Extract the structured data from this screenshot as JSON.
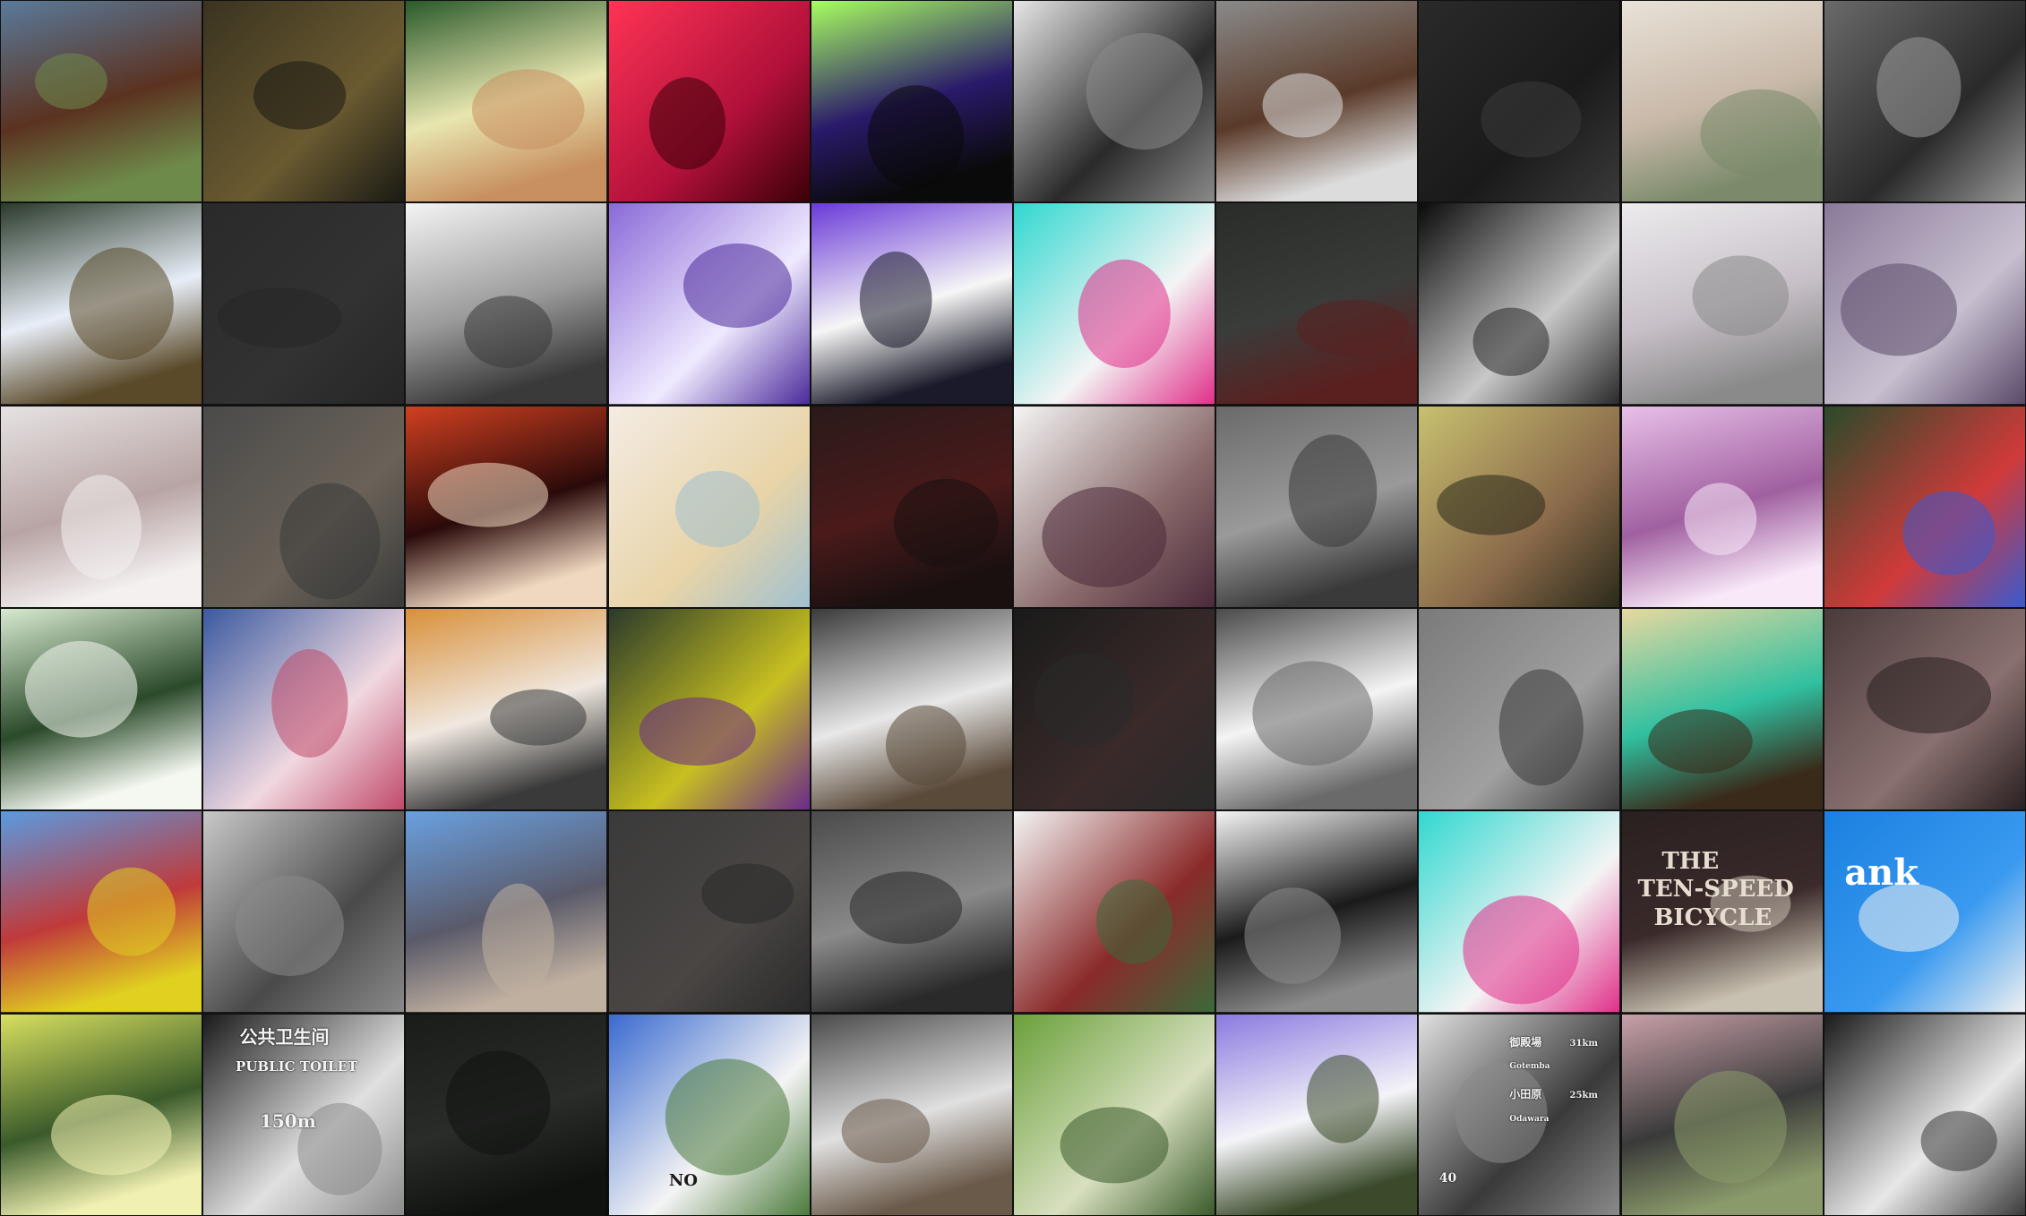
{
  "grid": {
    "columns": 10,
    "rows": 6,
    "tiles": [
      {
        "subject": "horse head close-up",
        "colors": [
          "#5a7a9a",
          "#5b3220",
          "#6e8a4a"
        ]
      },
      {
        "subject": "people with horse in stable",
        "colors": [
          "#3a3320",
          "#6a5a30",
          "#1a1a14"
        ]
      },
      {
        "subject": "jousting knight on horse",
        "colors": [
          "#2a5a2a",
          "#e8e6b0",
          "#c89060"
        ]
      },
      {
        "subject": "small white dog red tint",
        "colors": [
          "#ff3355",
          "#b0103a",
          "#3a0008"
        ]
      },
      {
        "subject": "horse head neon green",
        "colors": [
          "#a8ff60",
          "#2a1a6a",
          "#0a0a0a"
        ]
      },
      {
        "subject": "pack mule black and white",
        "colors": [
          "#e6e6e6",
          "#2a2a2a",
          "#8a8a8a"
        ]
      },
      {
        "subject": "horse walking in parking lot",
        "colors": [
          "#8a8a8a",
          "#5a3a28",
          "#dcdcdc"
        ]
      },
      {
        "subject": "dark cow faces",
        "colors": [
          "#2a2a2a",
          "#1a1a1a",
          "#3a3a3a"
        ]
      },
      {
        "subject": "white horse faded",
        "colors": [
          "#e8e2d8",
          "#c8b8a8",
          "#7a8a6a"
        ]
      },
      {
        "subject": "bird on buffalo grayscale",
        "colors": [
          "#6a6a6a",
          "#2a2a2a",
          "#9a9a9a"
        ]
      },
      {
        "subject": "skier among trees",
        "colors": [
          "#2a3a2a",
          "#e8eef8",
          "#5a4a2a"
        ]
      },
      {
        "subject": "dark snowy forest",
        "colors": [
          "#2a2a2a",
          "#323232",
          "#262626"
        ]
      },
      {
        "subject": "snowboarder on rail faded",
        "colors": [
          "#f4f4f4",
          "#9a9a9a",
          "#3a3a3a"
        ]
      },
      {
        "subject": "snowboarder jump purple sky",
        "colors": [
          "#8a6ad8",
          "#f0eaff",
          "#4a2a9a"
        ]
      },
      {
        "subject": "ski race crowd",
        "colors": [
          "#6a3ad8",
          "#f6f6f6",
          "#1a1a2a"
        ]
      },
      {
        "subject": "ski race finish arch",
        "colors": [
          "#30d8d0",
          "#f4f4f4",
          "#e0308a"
        ]
      },
      {
        "subject": "skier dark",
        "colors": [
          "#2a2c2a",
          "#3a3c3a",
          "#5a2020"
        ]
      },
      {
        "subject": "skier carving at night",
        "colors": [
          "#0a0a0a",
          "#c8c8c8",
          "#2a2a2a"
        ]
      },
      {
        "subject": "skier jumping foggy",
        "colors": [
          "#ecebee",
          "#c8c0c8",
          "#8a8a8a"
        ]
      },
      {
        "subject": "mountain clouds purple",
        "colors": [
          "#8a7a9a",
          "#c8c0d0",
          "#5a4a6a"
        ]
      },
      {
        "subject": "empty kitchen cabinets",
        "colors": [
          "#e6e2e2",
          "#b8a4a4",
          "#f4f0f0"
        ]
      },
      {
        "subject": "kitchen faded",
        "colors": [
          "#4a4a4a",
          "#6a6258",
          "#3a3a3a"
        ]
      },
      {
        "subject": "red kitchen",
        "colors": [
          "#d04020",
          "#2a0a0a",
          "#f0d8c0"
        ]
      },
      {
        "subject": "bathroom with flower decals",
        "colors": [
          "#f4ece4",
          "#e8d4a8",
          "#a0c0d0"
        ]
      },
      {
        "subject": "dark red kitchen",
        "colors": [
          "#2a1a1a",
          "#4a1a1a",
          "#1a1010"
        ]
      },
      {
        "subject": "kitchen with window",
        "colors": [
          "#f4f4f4",
          "#8a6a6a",
          "#4a2a3a"
        ]
      },
      {
        "subject": "teddy bear grayscale",
        "colors": [
          "#6a6a6a",
          "#9a9a9a",
          "#3a3a3a"
        ]
      },
      {
        "subject": "shelf corner yellow",
        "colors": [
          "#c8c070",
          "#8a6a4a",
          "#2a2a1a"
        ]
      },
      {
        "subject": "pink kitchen",
        "colors": [
          "#e8c0e8",
          "#a060a0",
          "#f8e8f8"
        ]
      },
      {
        "subject": "colorful blankets on wall",
        "colors": [
          "#2a4a2a",
          "#d03a3a",
          "#3a5ad0"
        ]
      },
      {
        "subject": "cat on bed green",
        "colors": [
          "#d8ead0",
          "#2a4a2a",
          "#f4f8f0"
        ]
      },
      {
        "subject": "child on floral bed",
        "colors": [
          "#3a5aa0",
          "#f0d8e0",
          "#c04a6a"
        ]
      },
      {
        "subject": "cat on orange blanket",
        "colors": [
          "#d8903a",
          "#f0e8e0",
          "#3a3a3a"
        ]
      },
      {
        "subject": "pillows on bed yellow green",
        "colors": [
          "#2a3a2a",
          "#c8c020",
          "#6a2a8a"
        ]
      },
      {
        "subject": "hotel bed white",
        "colors": [
          "#3a3a3a",
          "#e8e8e8",
          "#5a4a3a"
        ]
      },
      {
        "subject": "bed dark",
        "colors": [
          "#1a1a1a",
          "#3a2a2a",
          "#2a2a2a"
        ]
      },
      {
        "subject": "hotel bed grayscale",
        "colors": [
          "#4a4a4a",
          "#f4f4f4",
          "#6a6a6a"
        ]
      },
      {
        "subject": "teddy bear grayscale 2",
        "colors": [
          "#7a7a7a",
          "#a0a0a0",
          "#3a3a3a"
        ]
      },
      {
        "subject": "bed with sneakers",
        "colors": [
          "#e8d8a0",
          "#30c0a0",
          "#3a2a1a"
        ]
      },
      {
        "subject": "sleeping cat",
        "colors": [
          "#4a3a3a",
          "#8a7070",
          "#2a2020"
        ]
      },
      {
        "subject": "graffiti building",
        "colors": [
          "#5a9ae0",
          "#c03a3a",
          "#e0d020"
        ]
      },
      {
        "subject": "skaters grayscale collage",
        "colors": [
          "#c8c8c8",
          "#4a4a4a",
          "#8a8a8a"
        ]
      },
      {
        "subject": "skateboarder jump blue sky",
        "colors": [
          "#6aa0e0",
          "#5a5a6a",
          "#c0b0a0"
        ]
      },
      {
        "subject": "skateboarder dark",
        "colors": [
          "#3a3a3a",
          "#4a4644",
          "#2a2a2a"
        ]
      },
      {
        "subject": "tennis racket compass",
        "colors": [
          "#4a4a4a",
          "#8a8a8a",
          "#2a2a2a"
        ]
      },
      {
        "subject": "skateboarder red shirt",
        "colors": [
          "#f4f4f4",
          "#8a2a2a",
          "#3a6a3a"
        ]
      },
      {
        "subject": "skateboarder street bw",
        "colors": [
          "#f4f4f4",
          "#1a1a1a",
          "#8a8a8a"
        ]
      },
      {
        "subject": "ski race finish arch 2",
        "colors": [
          "#30d8d0",
          "#f4f4f4",
          "#e0308a"
        ]
      },
      {
        "subject": "book cover",
        "colors": [
          "#2a2020",
          "#3a2a2a",
          "#c8c0b0"
        ],
        "text": [
          "THE",
          "TEN-SPEED",
          "BICYCLE"
        ]
      },
      {
        "subject": "tennis court blue",
        "colors": [
          "#1a80e0",
          "#3a9af0",
          "#f0f0f0"
        ],
        "text": [
          "ank"
        ]
      },
      {
        "subject": "autumn forest",
        "colors": [
          "#d8e060",
          "#3a5a2a",
          "#f0f0b0"
        ]
      },
      {
        "subject": "public toilet sign",
        "colors": [
          "#1a1a1a",
          "#e0e0e0",
          "#8a8a8a"
        ],
        "text": [
          "公共卫生间",
          "PUBLIC TOILET",
          "150m"
        ]
      },
      {
        "subject": "dark forest",
        "colors": [
          "#1a1c1a",
          "#2a2c2a",
          "#101210"
        ]
      },
      {
        "subject": "parking sign",
        "colors": [
          "#3a6ad0",
          "#f4f4f4",
          "#4a7a3a"
        ],
        "text": [
          "NO"
        ]
      },
      {
        "subject": "man under trees",
        "colors": [
          "#4a4a4a",
          "#e0e0e0",
          "#6a5a4a"
        ]
      },
      {
        "subject": "river with trees",
        "colors": [
          "#6aa03a",
          "#d8e0c0",
          "#3a5a2a"
        ]
      },
      {
        "subject": "pole against sky",
        "colors": [
          "#8a7ae0",
          "#f4f4f8",
          "#3a4a2a"
        ]
      },
      {
        "subject": "road sign grayscale",
        "colors": [
          "#e0e0e0",
          "#3a3a3a",
          "#8a8a8a"
        ],
        "text": [
          "御殿場",
          "Gotemba",
          "小田原",
          "Odawara",
          "31km",
          "25km",
          "40"
        ]
      },
      {
        "subject": "parking meter pink trees",
        "colors": [
          "#c8a0a8",
          "#3a3a3a",
          "#8a9a6a"
        ]
      },
      {
        "subject": "teddy bear dark",
        "colors": [
          "#1a1a1a",
          "#e8e8e8",
          "#3a3a3a"
        ]
      }
    ]
  }
}
